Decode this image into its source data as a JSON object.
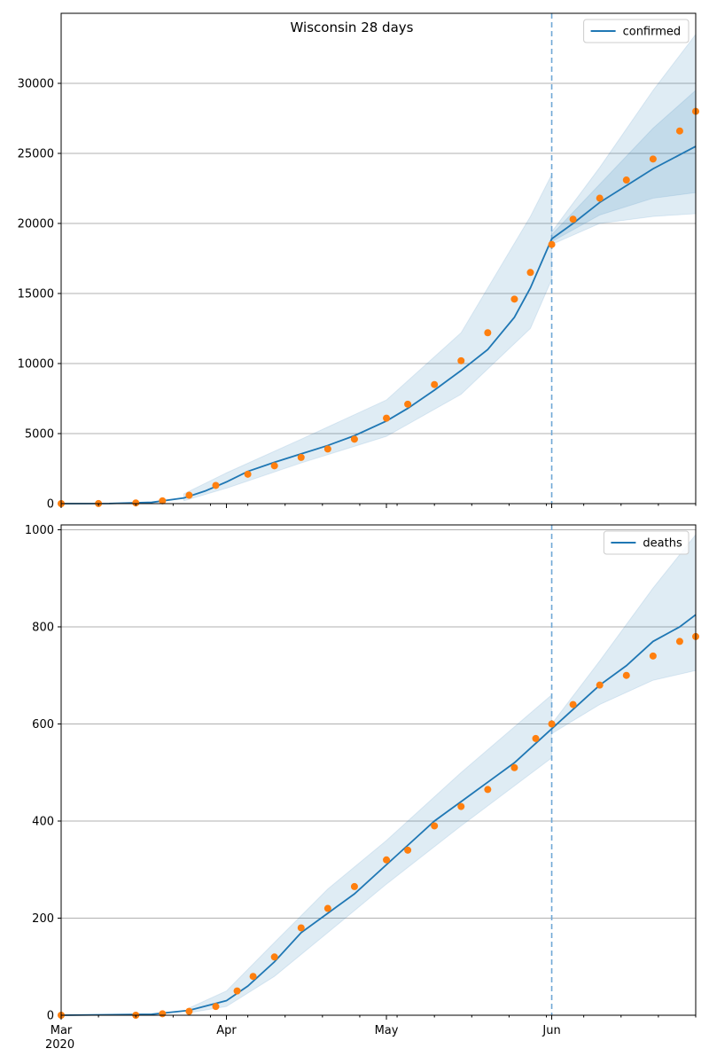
{
  "figure": {
    "title": "Wisconsin 28 days"
  },
  "colors": {
    "model": "#1f77b4",
    "observed": "#ff7f0e",
    "band": "#1f77b4",
    "forecast_line": "#6fa8d6",
    "grid": "#b0b0b0"
  },
  "chart_data": [
    {
      "type": "line",
      "title": "",
      "xlabel": "",
      "ylabel": "",
      "x_axis": {
        "type": "date",
        "start": "2020-03-01",
        "end": "2020-06-28",
        "ticks": [
          "Mar\n2020",
          "Apr",
          "May",
          "Jun"
        ],
        "tick_dates": [
          "2020-03-01",
          "2020-04-01",
          "2020-05-01",
          "2020-06-01"
        ]
      },
      "ylim": [
        0,
        35000
      ],
      "yticks": [
        0,
        5000,
        10000,
        15000,
        20000,
        25000,
        30000
      ],
      "grid": "horizontal",
      "legend": {
        "placement": "top-right",
        "entries": [
          "confirmed"
        ]
      },
      "forecast_start": "2020-06-01",
      "series": [
        {
          "name": "confirmed",
          "kind": "line",
          "points": [
            [
              "2020-03-01",
              0
            ],
            [
              "2020-03-10",
              10
            ],
            [
              "2020-03-18",
              90
            ],
            [
              "2020-03-24",
              400
            ],
            [
              "2020-03-28",
              900
            ],
            [
              "2020-04-01",
              1550
            ],
            [
              "2020-04-05",
              2300
            ],
            [
              "2020-04-10",
              2950
            ],
            [
              "2020-04-15",
              3550
            ],
            [
              "2020-04-20",
              4150
            ],
            [
              "2020-04-25",
              4850
            ],
            [
              "2020-05-01",
              5900
            ],
            [
              "2020-05-05",
              6800
            ],
            [
              "2020-05-10",
              8100
            ],
            [
              "2020-05-15",
              9500
            ],
            [
              "2020-05-20",
              11000
            ],
            [
              "2020-05-25",
              13300
            ],
            [
              "2020-05-28",
              15400
            ],
            [
              "2020-06-01",
              18900
            ],
            [
              "2020-06-05",
              20000
            ],
            [
              "2020-06-10",
              21500
            ],
            [
              "2020-06-15",
              22700
            ],
            [
              "2020-06-20",
              23900
            ],
            [
              "2020-06-25",
              24900
            ],
            [
              "2020-06-28",
              25500
            ]
          ],
          "bands": [
            {
              "lower": [
                [
                  "2020-03-24",
                  200
                ],
                [
                  "2020-04-01",
                  1100
                ],
                [
                  "2020-04-15",
                  2900
                ],
                [
                  "2020-05-01",
                  4800
                ],
                [
                  "2020-05-15",
                  7800
                ],
                [
                  "2020-05-28",
                  12500
                ],
                [
                  "2020-06-01",
                  16000
                ]
              ],
              "upper": [
                [
                  "2020-03-24",
                  700
                ],
                [
                  "2020-04-01",
                  2200
                ],
                [
                  "2020-04-15",
                  4600
                ],
                [
                  "2020-05-01",
                  7400
                ],
                [
                  "2020-05-15",
                  12200
                ],
                [
                  "2020-05-28",
                  20500
                ],
                [
                  "2020-06-01",
                  23500
                ]
              ]
            },
            {
              "lower": [
                [
                  "2020-06-01",
                  18500
                ],
                [
                  "2020-06-10",
                  20000
                ],
                [
                  "2020-06-20",
                  20500
                ],
                [
                  "2020-06-28",
                  20700
                ]
              ],
              "upper": [
                [
                  "2020-06-01",
                  19400
                ],
                [
                  "2020-06-10",
                  24000
                ],
                [
                  "2020-06-20",
                  29500
                ],
                [
                  "2020-06-28",
                  33500
                ]
              ]
            },
            {
              "lower": [
                [
                  "2020-06-01",
                  18700
                ],
                [
                  "2020-06-10",
                  20600
                ],
                [
                  "2020-06-20",
                  21800
                ],
                [
                  "2020-06-28",
                  22200
                ]
              ],
              "upper": [
                [
                  "2020-06-01",
                  19200
                ],
                [
                  "2020-06-10",
                  22800
                ],
                [
                  "2020-06-20",
                  26800
                ],
                [
                  "2020-06-28",
                  29500
                ]
              ]
            }
          ]
        },
        {
          "name": "observed",
          "kind": "scatter",
          "points": [
            [
              "2020-03-01",
              0
            ],
            [
              "2020-03-08",
              5
            ],
            [
              "2020-03-15",
              50
            ],
            [
              "2020-03-20",
              200
            ],
            [
              "2020-03-25",
              600
            ],
            [
              "2020-03-30",
              1300
            ],
            [
              "2020-04-05",
              2100
            ],
            [
              "2020-04-10",
              2700
            ],
            [
              "2020-04-15",
              3300
            ],
            [
              "2020-04-20",
              3900
            ],
            [
              "2020-04-25",
              4600
            ],
            [
              "2020-05-01",
              6100
            ],
            [
              "2020-05-05",
              7100
            ],
            [
              "2020-05-10",
              8500
            ],
            [
              "2020-05-15",
              10200
            ],
            [
              "2020-05-20",
              12200
            ],
            [
              "2020-05-25",
              14600
            ],
            [
              "2020-05-28",
              16500
            ],
            [
              "2020-06-01",
              18500
            ],
            [
              "2020-06-05",
              20300
            ],
            [
              "2020-06-10",
              21800
            ],
            [
              "2020-06-15",
              23100
            ],
            [
              "2020-06-20",
              24600
            ],
            [
              "2020-06-25",
              26600
            ],
            [
              "2020-06-28",
              28000
            ]
          ]
        }
      ]
    },
    {
      "type": "line",
      "title": "",
      "xlabel": "",
      "ylabel": "",
      "x_axis": {
        "type": "date",
        "start": "2020-03-01",
        "end": "2020-06-28",
        "ticks": [
          "Mar\n2020",
          "Apr",
          "May",
          "Jun"
        ],
        "tick_dates": [
          "2020-03-01",
          "2020-04-01",
          "2020-05-01",
          "2020-06-01"
        ]
      },
      "ylim": [
        0,
        1010
      ],
      "yticks": [
        0,
        200,
        400,
        600,
        800,
        1000
      ],
      "grid": "horizontal",
      "legend": {
        "placement": "top-right",
        "entries": [
          "deaths"
        ]
      },
      "forecast_start": "2020-06-01",
      "series": [
        {
          "name": "deaths",
          "kind": "line",
          "points": [
            [
              "2020-03-01",
              0
            ],
            [
              "2020-03-18",
              2
            ],
            [
              "2020-03-25",
              10
            ],
            [
              "2020-04-01",
              30
            ],
            [
              "2020-04-05",
              60
            ],
            [
              "2020-04-10",
              110
            ],
            [
              "2020-04-15",
              170
            ],
            [
              "2020-04-20",
              210
            ],
            [
              "2020-04-25",
              250
            ],
            [
              "2020-05-01",
              310
            ],
            [
              "2020-05-05",
              350
            ],
            [
              "2020-05-10",
              400
            ],
            [
              "2020-05-15",
              440
            ],
            [
              "2020-05-20",
              480
            ],
            [
              "2020-05-25",
              520
            ],
            [
              "2020-06-01",
              590
            ],
            [
              "2020-06-05",
              630
            ],
            [
              "2020-06-10",
              680
            ],
            [
              "2020-06-15",
              720
            ],
            [
              "2020-06-20",
              770
            ],
            [
              "2020-06-25",
              800
            ],
            [
              "2020-06-28",
              825
            ]
          ],
          "bands": [
            {
              "lower": [
                [
                  "2020-03-25",
                  5
                ],
                [
                  "2020-04-01",
                  18
                ],
                [
                  "2020-04-10",
                  80
                ],
                [
                  "2020-04-20",
                  170
                ],
                [
                  "2020-05-01",
                  270
                ],
                [
                  "2020-05-15",
                  390
                ],
                [
                  "2020-06-01",
                  530
                ]
              ],
              "upper": [
                [
                  "2020-03-25",
                  15
                ],
                [
                  "2020-04-01",
                  50
                ],
                [
                  "2020-04-10",
                  150
                ],
                [
                  "2020-04-20",
                  260
                ],
                [
                  "2020-05-01",
                  360
                ],
                [
                  "2020-05-15",
                  500
                ],
                [
                  "2020-06-01",
                  660
                ]
              ]
            },
            {
              "lower": [
                [
                  "2020-06-01",
                  580
                ],
                [
                  "2020-06-10",
                  640
                ],
                [
                  "2020-06-20",
                  690
                ],
                [
                  "2020-06-28",
                  710
                ]
              ],
              "upper": [
                [
                  "2020-06-01",
                  600
                ],
                [
                  "2020-06-10",
                  730
                ],
                [
                  "2020-06-20",
                  880
                ],
                [
                  "2020-06-28",
                  990
                ]
              ]
            }
          ]
        },
        {
          "name": "observed",
          "kind": "scatter",
          "points": [
            [
              "2020-03-01",
              0
            ],
            [
              "2020-03-15",
              0
            ],
            [
              "2020-03-20",
              3
            ],
            [
              "2020-03-25",
              8
            ],
            [
              "2020-03-30",
              18
            ],
            [
              "2020-04-03",
              50
            ],
            [
              "2020-04-06",
              80
            ],
            [
              "2020-04-10",
              120
            ],
            [
              "2020-04-15",
              180
            ],
            [
              "2020-04-20",
              220
            ],
            [
              "2020-04-25",
              265
            ],
            [
              "2020-05-01",
              320
            ],
            [
              "2020-05-05",
              340
            ],
            [
              "2020-05-10",
              390
            ],
            [
              "2020-05-15",
              430
            ],
            [
              "2020-05-20",
              465
            ],
            [
              "2020-05-25",
              510
            ],
            [
              "2020-05-29",
              570
            ],
            [
              "2020-06-01",
              600
            ],
            [
              "2020-06-05",
              640
            ],
            [
              "2020-06-10",
              680
            ],
            [
              "2020-06-15",
              700
            ],
            [
              "2020-06-20",
              740
            ],
            [
              "2020-06-25",
              770
            ],
            [
              "2020-06-28",
              780
            ]
          ]
        }
      ]
    }
  ]
}
